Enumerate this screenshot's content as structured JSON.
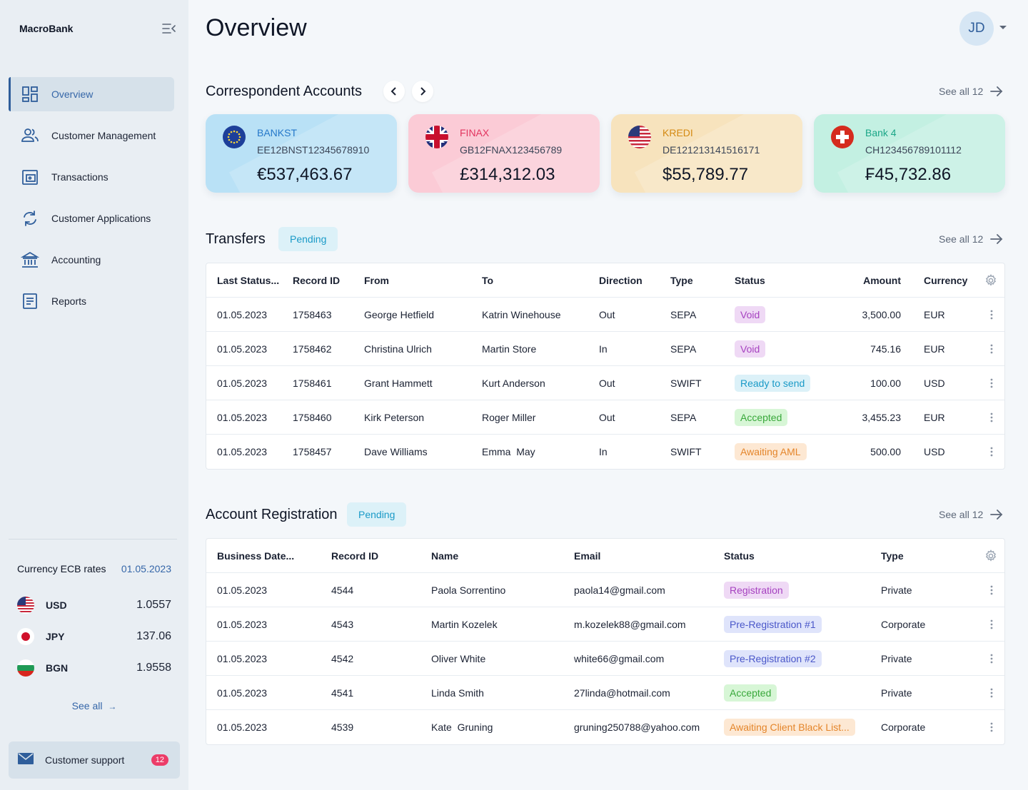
{
  "brand": "MacroBank",
  "nav": [
    {
      "label": "Overview",
      "icon": "dashboard-icon"
    },
    {
      "label": "Customer Management",
      "icon": "users-icon"
    },
    {
      "label": "Transactions",
      "icon": "wallet-icon"
    },
    {
      "label": "Customer Applications",
      "icon": "refresh-icon"
    },
    {
      "label": "Accounting",
      "icon": "bank-icon"
    },
    {
      "label": "Reports",
      "icon": "report-icon"
    }
  ],
  "rates": {
    "title": "Currency ECB rates",
    "date": "01.05.2023",
    "items": [
      {
        "code": "USD",
        "value": "1.0557"
      },
      {
        "code": "JPY",
        "value": "137.06"
      },
      {
        "code": "BGN",
        "value": "1.9558"
      }
    ],
    "see_all": "See all"
  },
  "support": {
    "label": "Customer support",
    "badge": "12"
  },
  "header": {
    "title": "Overview",
    "avatar": "JD"
  },
  "accounts": {
    "title": "Correspondent Accounts",
    "see_all": "See all 12",
    "cards": [
      {
        "bank": "BANKST",
        "iban": "EE12BNST12345678910",
        "amount": "€537,463.67"
      },
      {
        "bank": "FINAX",
        "iban": "GB12FNAX123456789",
        "amount": "£314,312.03"
      },
      {
        "bank": "KREDI",
        "iban": "DE121213141516171",
        "amount": "$55,789.77"
      },
      {
        "bank": "Bank 4",
        "iban": "CH123456789101112",
        "amount": "₣45,732.86"
      }
    ]
  },
  "transfers": {
    "title": "Transfers",
    "pill": "Pending",
    "see_all": "See all 12",
    "headers": {
      "date": "Last Status...",
      "id": "Record ID",
      "from": "From",
      "to": "To",
      "direction": "Direction",
      "type": "Type",
      "status": "Status",
      "amount": "Amount",
      "currency": "Currency"
    },
    "rows": [
      {
        "date": "01.05.2023",
        "id": "1758463",
        "from": "George Hetfield",
        "to": "Katrin Winehouse",
        "direction": "Out",
        "type": "SEPA",
        "status": "Void",
        "amount": "3,500.00",
        "currency": "EUR"
      },
      {
        "date": "01.05.2023",
        "id": "1758462",
        "from": "Christina Ulrich",
        "to": "Martin Store",
        "direction": "In",
        "type": "SEPA",
        "status": "Void",
        "amount": "745.16",
        "currency": "EUR"
      },
      {
        "date": "01.05.2023",
        "id": "1758461",
        "from": "Grant Hammett",
        "to": "Kurt Anderson",
        "direction": "Out",
        "type": "SWIFT",
        "status": "Ready to send",
        "amount": "100.00",
        "currency": "USD"
      },
      {
        "date": "01.05.2023",
        "id": "1758460",
        "from": "Kirk Peterson",
        "to": "Roger Miller",
        "direction": "Out",
        "type": "SEPA",
        "status": "Accepted",
        "amount": "3,455.23",
        "currency": "EUR"
      },
      {
        "date": "01.05.2023",
        "id": "1758457",
        "from": "Dave Williams",
        "to": "Emma  May",
        "direction": "In",
        "type": "SWIFT",
        "status": "Awaiting AML",
        "amount": "500.00",
        "currency": "USD"
      }
    ]
  },
  "registration": {
    "title": "Account Registration",
    "pill": "Pending",
    "see_all": "See all 12",
    "headers": {
      "date": "Business Date...",
      "id": "Record ID",
      "name": "Name",
      "email": "Email",
      "status": "Status",
      "type": "Type"
    },
    "rows": [
      {
        "date": "01.05.2023",
        "id": "4544",
        "name": "Paola Sorrentino",
        "email": "paola14@gmail.com",
        "status": "Registration",
        "type": "Private"
      },
      {
        "date": "01.05.2023",
        "id": "4543",
        "name": "Martin Kozelek",
        "email": "m.kozelek88@gmail.com",
        "status": "Pre-Registration #1",
        "type": "Corporate"
      },
      {
        "date": "01.05.2023",
        "id": "4542",
        "name": "Oliver White",
        "email": "white66@gmail.com",
        "status": "Pre-Registration #2",
        "type": "Private"
      },
      {
        "date": "01.05.2023",
        "id": "4541",
        "name": "Linda Smith",
        "email": "27linda@hotmail.com",
        "status": "Accepted",
        "type": "Private"
      },
      {
        "date": "01.05.2023",
        "id": "4539",
        "name": "Kate  Gruning",
        "email": "gruning250788@yahoo.com",
        "status": "Awaiting Client Black List...",
        "type": "Corporate"
      }
    ]
  }
}
